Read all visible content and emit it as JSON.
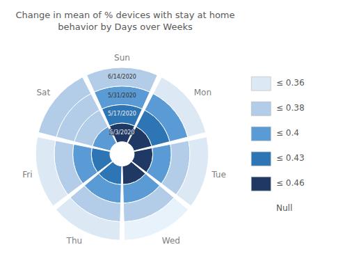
{
  "chart_data": {
    "type": "radial_heatmap",
    "title": "Change in mean of % devices with stay at home\nbehavior by Days over Weeks",
    "categories": [
      "Sun",
      "Mon",
      "Tue",
      "Wed",
      "Thu",
      "Fri",
      "Sat"
    ],
    "series": [
      {
        "name": "5/3/2020",
        "values": [
          0.46,
          0.46,
          0.46,
          0.46,
          0.43,
          0.43,
          0.4
        ]
      },
      {
        "name": "5/17/2020",
        "values": [
          0.43,
          0.43,
          0.4,
          0.4,
          0.4,
          0.4,
          0.38
        ]
      },
      {
        "name": "5/31/2020",
        "values": [
          0.4,
          0.4,
          0.38,
          0.38,
          0.38,
          0.38,
          0.38
        ]
      },
      {
        "name": "6/14/2020",
        "values": [
          0.38,
          0.36,
          0.36,
          null,
          0.36,
          0.36,
          0.38
        ]
      }
    ],
    "color_scale": {
      "thresholds": [
        0.36,
        0.38,
        0.4,
        0.43,
        0.46
      ],
      "labels": [
        "≤ 0.36",
        "≤ 0.38",
        "≤ 0.4",
        "≤ 0.43",
        "≤ 0.46"
      ],
      "colors": [
        "#dce9f5",
        "#b3cde8",
        "#5b9bd5",
        "#2e75b6",
        "#1f3864"
      ],
      "null_label": "Null",
      "null_color": "#e8f2fb"
    },
    "legend": "right"
  }
}
